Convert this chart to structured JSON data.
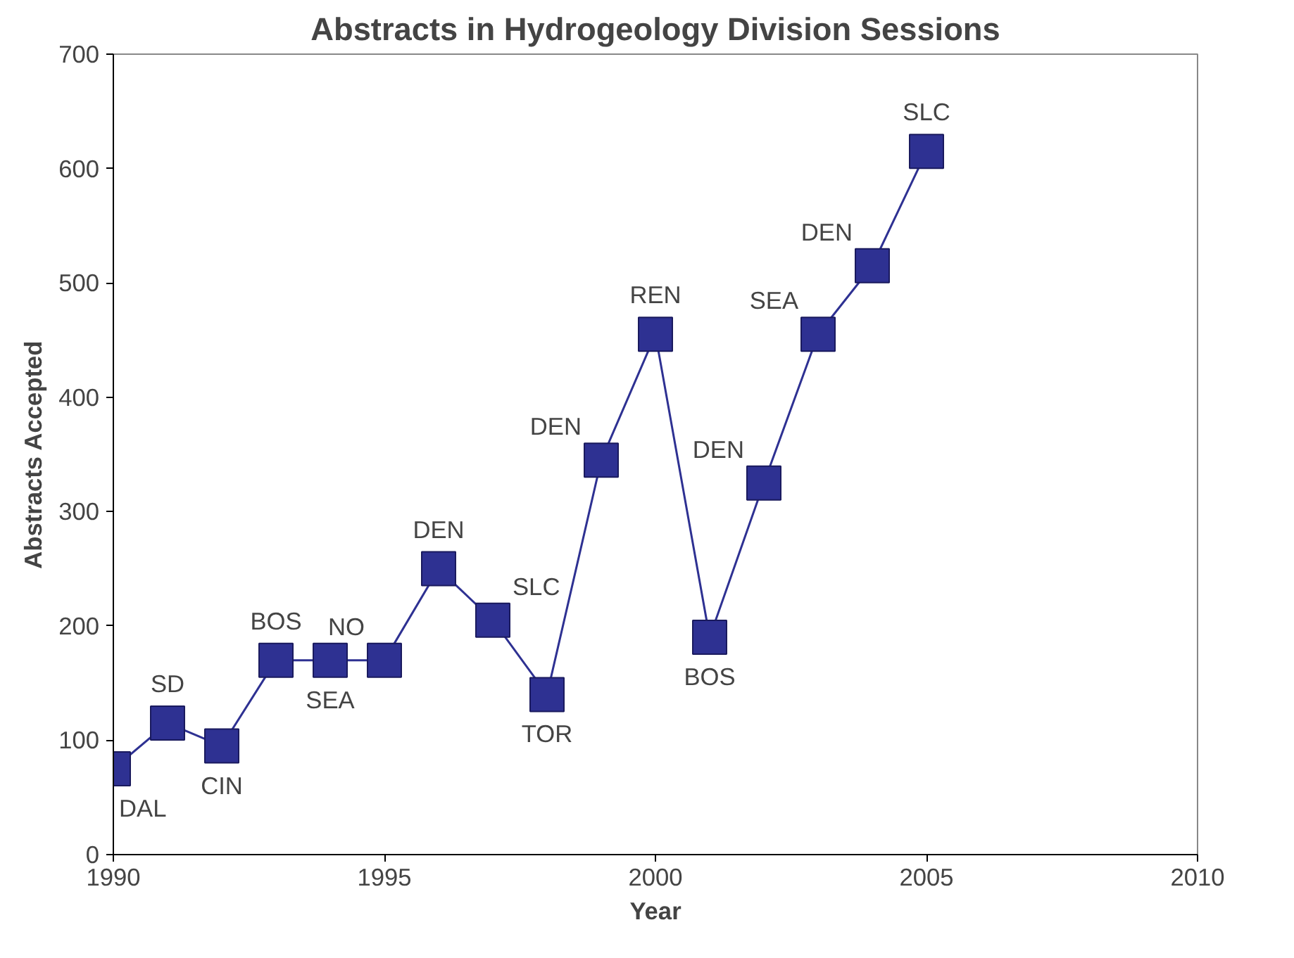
{
  "chart_data": {
    "type": "line",
    "title": "Abstracts in Hydrogeology Division Sessions",
    "xlabel": "Year",
    "ylabel": "Abstracts Accepted",
    "x": [
      1990,
      1991,
      1992,
      1993,
      1994,
      1995,
      1996,
      1997,
      1998,
      1999,
      2000,
      2001,
      2002,
      2003,
      2004,
      2005
    ],
    "series": [
      {
        "color": "#2e3192",
        "values": [
          75,
          115,
          95,
          170,
          170,
          170,
          250,
          205,
          140,
          345,
          455,
          190,
          325,
          455,
          515,
          615
        ]
      }
    ],
    "xlim": [
      1990,
      2010
    ],
    "xticks": [
      1990,
      1995,
      2000,
      2005,
      2010
    ],
    "ylim": [
      0,
      700
    ],
    "yticks": [
      0,
      100,
      200,
      300,
      400,
      500,
      600,
      700
    ],
    "grid": false,
    "marker": "square",
    "line_style": "solid",
    "annotations": [
      {
        "text": "DAL",
        "x": 1990,
        "y": 75
      },
      {
        "text": "SD",
        "x": 1991,
        "y": 115
      },
      {
        "text": "CIN",
        "x": 1992,
        "y": 95
      },
      {
        "text": "BOS",
        "x": 1993,
        "y": 170
      },
      {
        "text": "SEA",
        "x": 1994,
        "y": 170
      },
      {
        "text": "NO",
        "x": 1995,
        "y": 170
      },
      {
        "text": "DEN",
        "x": 1996,
        "y": 250
      },
      {
        "text": "SLC",
        "x": 1997,
        "y": 205
      },
      {
        "text": "TOR",
        "x": 1998,
        "y": 140
      },
      {
        "text": "DEN",
        "x": 1999,
        "y": 345
      },
      {
        "text": "REN",
        "x": 2000,
        "y": 455
      },
      {
        "text": "BOS",
        "x": 2001,
        "y": 190
      },
      {
        "text": "DEN",
        "x": 2002,
        "y": 325
      },
      {
        "text": "SEA",
        "x": 2003,
        "y": 455
      },
      {
        "text": "DEN",
        "x": 2004,
        "y": 515
      },
      {
        "text": "SLC",
        "x": 2005,
        "y": 615
      }
    ]
  }
}
